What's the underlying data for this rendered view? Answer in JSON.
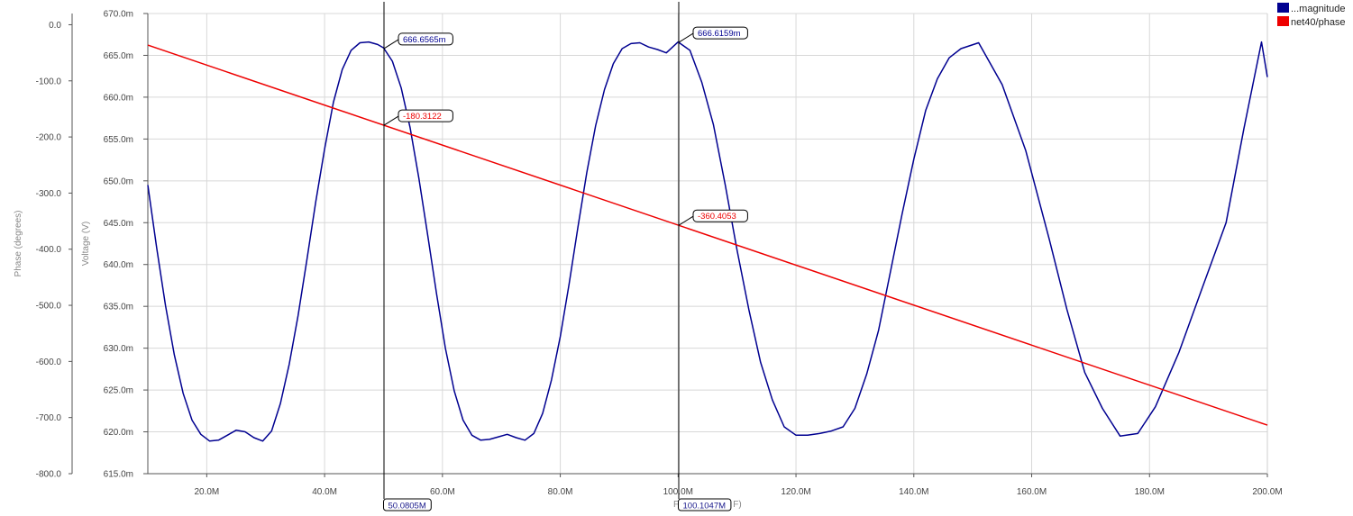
{
  "chart_data": {
    "type": "line",
    "xlabel": "F",
    "xlabel_suffix": "F)",
    "x_range": [
      10,
      200
    ],
    "x_ticks": [
      20,
      40,
      60,
      80,
      100,
      120,
      140,
      160,
      180,
      200
    ],
    "x_tick_labels": [
      "20.0M",
      "40.0M",
      "60.0M",
      "80.0M",
      "100.0M",
      "120.0M",
      "140.0M",
      "160.0M",
      "180.0M",
      "200.0M"
    ],
    "axes": {
      "voltage": {
        "label": "Voltage (V)",
        "range": [
          615,
          670
        ],
        "ticks": [
          615,
          620,
          625,
          630,
          635,
          640,
          645,
          650,
          655,
          660,
          665,
          670
        ],
        "tick_labels": [
          "615.0m",
          "620.0m",
          "625.0m",
          "630.0m",
          "635.0m",
          "640.0m",
          "645.0m",
          "650.0m",
          "655.0m",
          "660.0m",
          "665.0m",
          "670.0m"
        ]
      },
      "phase": {
        "label": "Phase (degrees)",
        "range": [
          -800,
          20
        ],
        "ticks": [
          -800,
          -700,
          -600,
          -500,
          -400,
          -300,
          -200,
          -100,
          0
        ],
        "tick_labels": [
          "-800.0",
          "-700.0",
          "-600.0",
          "-500.0",
          "-400.0",
          "-300.0",
          "-200.0",
          "-100.0",
          "0.0"
        ]
      }
    },
    "grid": true,
    "legend_position": "top-right",
    "series": [
      {
        "name": "...magnitude",
        "axis": "voltage",
        "color": "#000090",
        "x": [
          10,
          11.5,
          13,
          14.5,
          16,
          17.5,
          19,
          20.5,
          22,
          23.5,
          25,
          26.5,
          28,
          29.5,
          31,
          32.5,
          34,
          35.5,
          37,
          38.5,
          40,
          41.5,
          43,
          44.5,
          46,
          47.5,
          49,
          50,
          51.5,
          53,
          54.5,
          56,
          57.5,
          59,
          60.5,
          62,
          63.5,
          65,
          66.5,
          68,
          69.5,
          71,
          72.5,
          74,
          75.5,
          77,
          78.5,
          80,
          81.5,
          83,
          84.5,
          86,
          87.5,
          89,
          90.5,
          92,
          93.5,
          95,
          96.5,
          98,
          100,
          102,
          104,
          106,
          108,
          110,
          112,
          114,
          116,
          118,
          120,
          122,
          124,
          126,
          128,
          130,
          132,
          134,
          136,
          138,
          140,
          142,
          144,
          146,
          148,
          151,
          155,
          159,
          163,
          166,
          169,
          172,
          175,
          178,
          181,
          185,
          189,
          193,
          196,
          199,
          200
        ],
        "values": [
          649.5,
          642.0,
          635.1,
          629.2,
          624.6,
          621.4,
          619.7,
          618.9,
          619.0,
          619.6,
          620.2,
          620.0,
          619.3,
          618.9,
          620.1,
          623.4,
          628.1,
          633.9,
          640.6,
          647.5,
          653.8,
          659.4,
          663.3,
          665.6,
          666.5,
          666.6,
          666.3,
          665.9,
          664.3,
          661.1,
          656.4,
          650.3,
          643.5,
          636.5,
          630.0,
          624.9,
          621.4,
          619.6,
          619.0,
          619.1,
          619.4,
          619.7,
          619.3,
          619.0,
          619.8,
          622.2,
          626.2,
          631.4,
          637.7,
          644.5,
          651.0,
          656.6,
          660.9,
          664.0,
          665.8,
          666.4,
          666.5,
          666.0,
          665.7,
          665.3,
          666.6,
          665.6,
          661.8,
          656.7,
          649.5,
          641.7,
          634.6,
          628.3,
          623.8,
          620.6,
          619.6,
          619.6,
          619.8,
          620.1,
          620.6,
          622.8,
          626.9,
          632.1,
          639.0,
          646.0,
          652.6,
          658.4,
          662.2,
          664.7,
          665.8,
          666.5,
          661.5,
          653.6,
          643.0,
          634.6,
          627.1,
          622.8,
          619.5,
          619.8,
          623.0,
          629.5,
          637.3,
          645.0,
          656.2,
          666.6,
          662.4
        ],
        "markers": [
          {
            "x": 50.0805,
            "label": "666.6565m"
          },
          {
            "x": 100.1047,
            "label": "666.6159m"
          }
        ]
      },
      {
        "name": "net40/phase",
        "axis": "phase",
        "color": "#ee0000",
        "x": [
          10,
          200
        ],
        "values": [
          -36.3,
          -713.5
        ],
        "markers": [
          {
            "x": 50.0805,
            "label": "-180.3122"
          },
          {
            "x": 100.1047,
            "label": "-360.4053"
          }
        ]
      }
    ],
    "cursors": [
      {
        "x": 50.0805,
        "label": "50.0805M"
      },
      {
        "x": 100.1047,
        "label": "100.1047M"
      }
    ]
  }
}
